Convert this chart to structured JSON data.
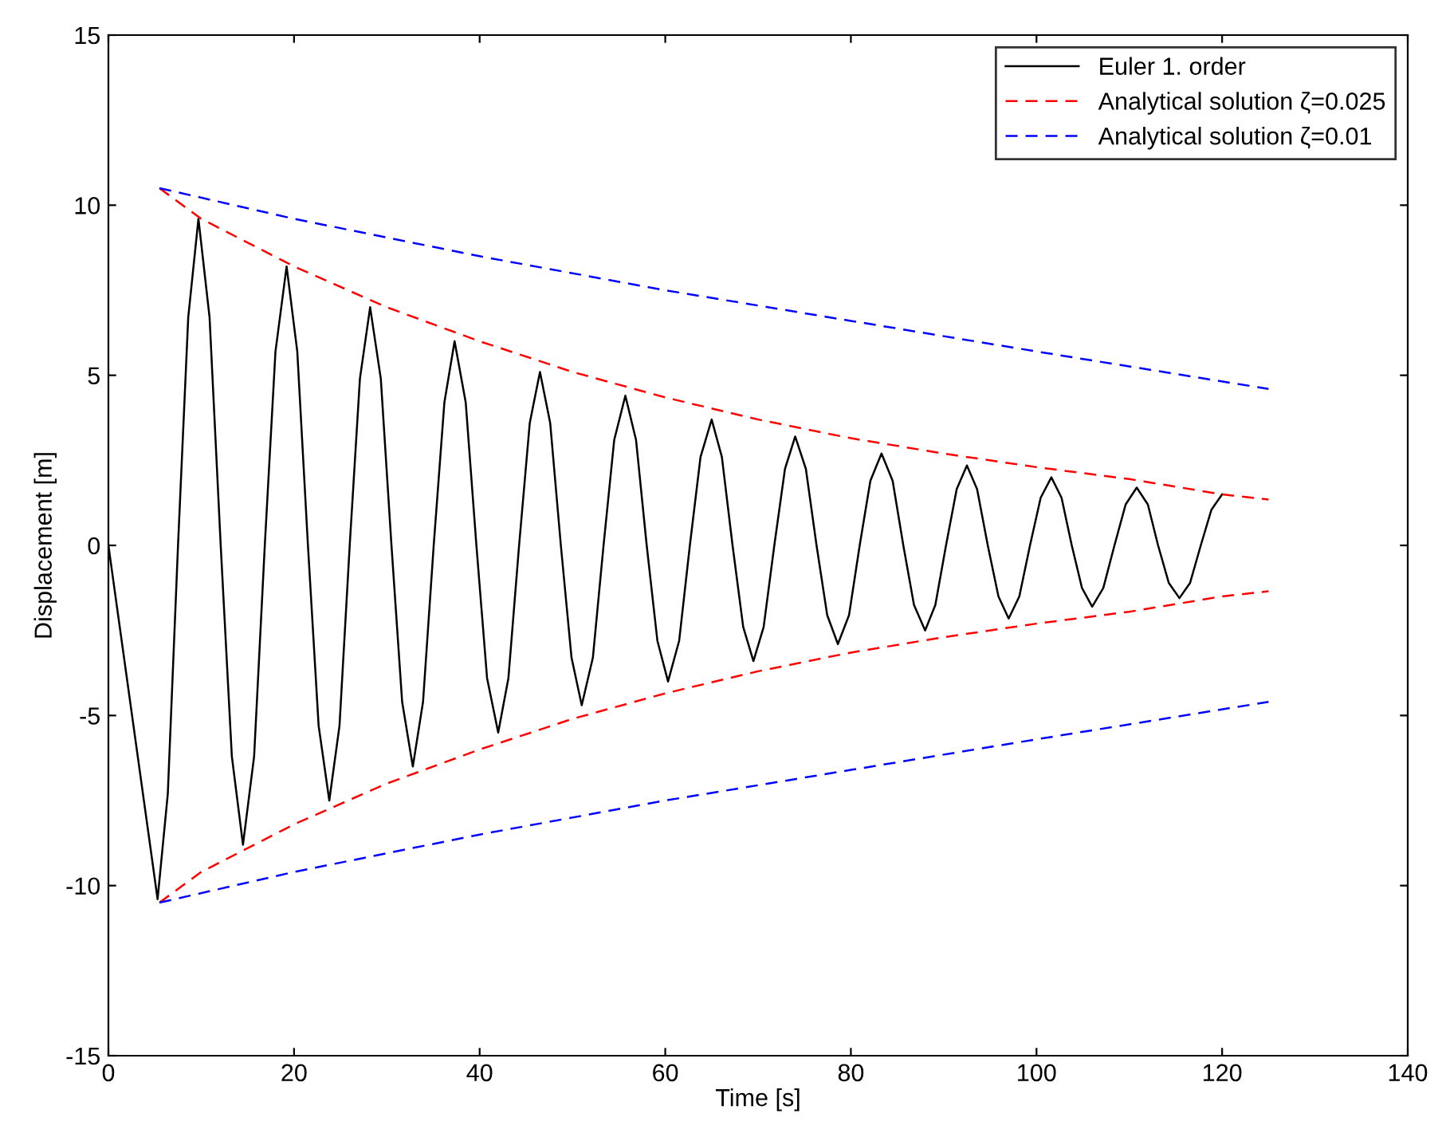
{
  "chart_data": {
    "type": "line",
    "xlabel": "Time [s]",
    "ylabel": "Displacement [m]",
    "xlim": [
      0,
      140
    ],
    "xticks": [
      0,
      20,
      40,
      60,
      80,
      100,
      120,
      140
    ],
    "ylim": [
      -15,
      15
    ],
    "yticks": [
      -15,
      -10,
      -5,
      0,
      5,
      10,
      15
    ],
    "grid": false,
    "legend": "top right",
    "marker": "none",
    "series": [
      {
        "name": "Euler 1. order",
        "color": "#000000",
        "line_style": "solid",
        "x": [
          0,
          5.3,
          6.4,
          7.5,
          8.6,
          9.7,
          10.9,
          12.1,
          13.3,
          14.5,
          15.7,
          16.85,
          18.0,
          19.2,
          20.35,
          21.5,
          22.65,
          23.8,
          24.9,
          26,
          27.1,
          28.2,
          29.35,
          30.5,
          31.65,
          32.8,
          33.9,
          35.05,
          36.2,
          37.3,
          38.5,
          39.65,
          40.8,
          42,
          43.1,
          44.25,
          45.4,
          46.5,
          47.6,
          48.75,
          49.9,
          51,
          52.2,
          53.35,
          54.5,
          55.7,
          56.85,
          58,
          59.15,
          60.3,
          61.5,
          62.65,
          63.8,
          65,
          66.1,
          67.25,
          68.4,
          69.5,
          70.6,
          71.75,
          72.9,
          74,
          75.15,
          76.3,
          77.45,
          78.6,
          79.8,
          80.95,
          82.1,
          83.3,
          84.5,
          85.65,
          86.8,
          88,
          89.1,
          90.25,
          91.4,
          92.5,
          93.6,
          94.75,
          95.9,
          97,
          98.15,
          99.3,
          100.45,
          101.6,
          102.7,
          103.8,
          104.9,
          106,
          107.2,
          108.4,
          109.6,
          110.8,
          112,
          113.1,
          114.25,
          115.4,
          116.55,
          117.7,
          118.85,
          120
        ],
        "values": [
          0,
          -10.4,
          -7.3,
          0,
          6.7,
          9.6,
          6.7,
          0,
          -6.2,
          -8.8,
          -6.2,
          0,
          5.7,
          8.2,
          5.7,
          0,
          -5.3,
          -7.5,
          -5.3,
          0,
          4.9,
          7.0,
          4.9,
          0,
          -4.6,
          -6.5,
          -4.6,
          0,
          4.2,
          6.0,
          4.2,
          0,
          -3.9,
          -5.5,
          -3.9,
          0,
          3.6,
          5.1,
          3.6,
          0,
          -3.3,
          -4.7,
          -3.3,
          0,
          3.1,
          4.4,
          3.1,
          0,
          -2.8,
          -4.0,
          -2.8,
          0,
          2.6,
          3.7,
          2.6,
          0,
          -2.4,
          -3.4,
          -2.4,
          0,
          2.25,
          3.2,
          2.25,
          0,
          -2.05,
          -2.9,
          -2.05,
          0,
          1.9,
          2.7,
          1.9,
          0,
          -1.75,
          -2.5,
          -1.75,
          0,
          1.65,
          2.35,
          1.65,
          0,
          -1.5,
          -2.15,
          -1.5,
          0,
          1.4,
          2.0,
          1.4,
          0,
          -1.25,
          -1.8,
          -1.25,
          0,
          1.2,
          1.7,
          1.2,
          0,
          -1.1,
          -1.55,
          -1.1,
          0,
          1.05,
          1.5
        ]
      },
      {
        "name": "Analytical solution ζ=0.025",
        "color": "#ff0000",
        "line_style": "dashed",
        "x": [
          5.5,
          10,
          20,
          30,
          40,
          50,
          60,
          70,
          80,
          90,
          100,
          110,
          120,
          125
        ],
        "values": [
          10.5,
          9.6,
          8.2,
          7.0,
          6.0,
          5.1,
          4.35,
          3.7,
          3.15,
          2.7,
          2.3,
          1.95,
          1.5,
          1.35
        ]
      },
      {
        "color": "#ff0000",
        "line_style": "dashed",
        "x": [
          5.5,
          10,
          20,
          30,
          40,
          50,
          60,
          70,
          80,
          90,
          100,
          110,
          120,
          125
        ],
        "values": [
          -10.5,
          -9.6,
          -8.2,
          -7.0,
          -6.0,
          -5.1,
          -4.35,
          -3.7,
          -3.15,
          -2.7,
          -2.3,
          -1.95,
          -1.5,
          -1.35
        ]
      },
      {
        "name": "Analytical solution ζ=0.01",
        "color": "#0000ff",
        "line_style": "dashed",
        "x": [
          5.5,
          20,
          40,
          60,
          80,
          100,
          125
        ],
        "values": [
          10.5,
          9.6,
          8.5,
          7.5,
          6.6,
          5.7,
          4.6
        ]
      },
      {
        "color": "#0000ff",
        "line_style": "dashed",
        "x": [
          5.5,
          20,
          40,
          60,
          80,
          100,
          125
        ],
        "values": [
          -10.5,
          -9.6,
          -8.5,
          -7.5,
          -6.6,
          -5.7,
          -4.6
        ]
      }
    ]
  }
}
